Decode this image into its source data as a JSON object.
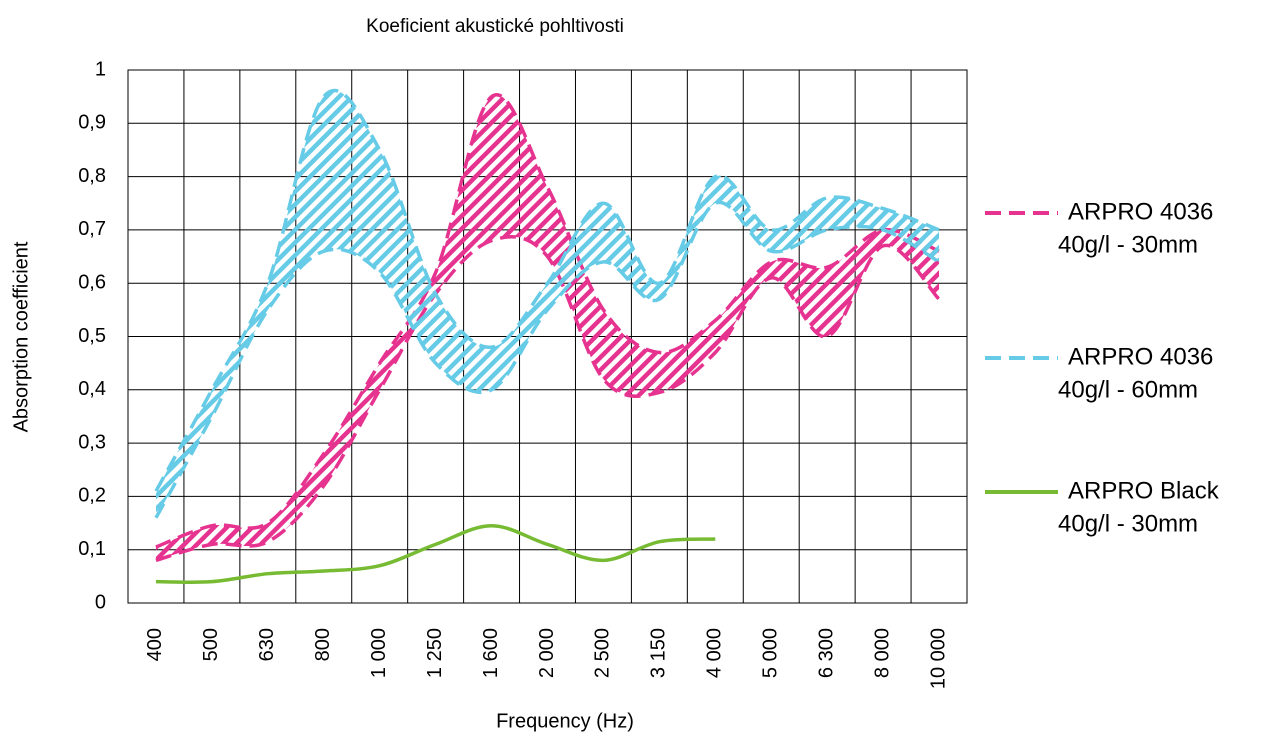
{
  "chart_data": {
    "type": "band-line",
    "title": "Koeficient akustické pohltivosti",
    "x_label": "Frequency (Hz)",
    "y_label": "Absorption coefficient",
    "categories": [
      "400",
      "500",
      "630",
      "800",
      "1 000",
      "1 250",
      "1 600",
      "2 000",
      "2 500",
      "3 150",
      "4 000",
      "5 000",
      "6 300",
      "8 000",
      "10 000"
    ],
    "ylim": [
      0,
      1
    ],
    "yticks": [
      0,
      {
        "value": 0.1,
        "label": "0,1"
      },
      {
        "value": 0.2,
        "label": "0,2"
      },
      {
        "value": 0.3,
        "label": "0,3"
      },
      {
        "value": 0.4,
        "label": "0,4"
      },
      {
        "value": 0.5,
        "label": "0,5"
      },
      {
        "value": 0.6,
        "label": "0,6"
      },
      {
        "value": 0.7,
        "label": "0,7"
      },
      {
        "value": 0.8,
        "label": "0,8"
      },
      {
        "value": 0.9,
        "label": "0,9"
      },
      1
    ],
    "grid": true,
    "legend": "right",
    "series": [
      {
        "name": [
          "ARPRO 4036",
          "40g/l - 30mm"
        ],
        "color": "#e6338f",
        "style": "dashed-band",
        "values": [
          0.105,
          0.145,
          0.15,
          0.28,
          0.45,
          0.62,
          0.95,
          0.78,
          0.55,
          0.47,
          0.53,
          0.64,
          0.63,
          0.7,
          0.66
        ],
        "lower": [
          0.08,
          0.11,
          0.115,
          0.22,
          0.4,
          0.58,
          0.68,
          0.65,
          0.42,
          0.395,
          0.47,
          0.61,
          0.5,
          0.67,
          0.57
        ]
      },
      {
        "name": [
          "ARPRO 4036",
          "40g/l - 60mm"
        ],
        "color": "#66cbe6",
        "style": "dashed-band",
        "values": [
          0.21,
          0.4,
          0.6,
          0.95,
          0.85,
          0.58,
          0.48,
          0.6,
          0.75,
          0.6,
          0.8,
          0.7,
          0.76,
          0.74,
          0.7
        ],
        "lower": [
          0.16,
          0.35,
          0.55,
          0.66,
          0.62,
          0.45,
          0.4,
          0.55,
          0.64,
          0.57,
          0.75,
          0.66,
          0.7,
          0.7,
          0.64
        ]
      },
      {
        "name": [
          "ARPRO Black",
          "40g/l - 30mm"
        ],
        "color": "#77bb33",
        "style": "solid",
        "values": [
          0.04,
          0.04,
          0.055,
          0.06,
          0.07,
          0.11,
          0.145,
          0.11,
          0.08,
          0.115,
          0.12,
          null,
          null,
          null,
          null
        ]
      }
    ]
  }
}
